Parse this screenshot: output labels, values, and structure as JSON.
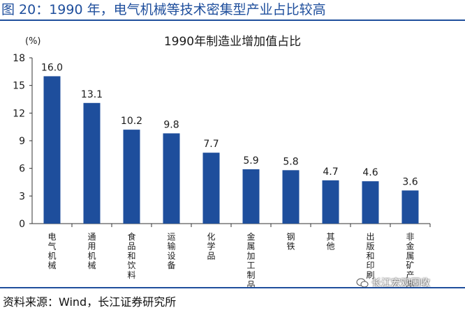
{
  "header": {
    "title": "图 20：1990 年，电气机械等技术密集型产业占比较高"
  },
  "footer": {
    "source": "资料来源：Wind，长江证券研究所"
  },
  "watermark": {
    "text": "长江宏观固收",
    "icon": "wechat-icon"
  },
  "colors": {
    "bar": "#1e4e9c",
    "rule": "#1e4e9c",
    "text": "#1a1a1a"
  },
  "chart_data": {
    "type": "bar",
    "title": "1990年制造业增加值占比",
    "unit": "(%)",
    "categories": [
      "电气机械",
      "通用机械",
      "食品和饮料",
      "运输设备",
      "化学品",
      "金属加工制品",
      "钢铁",
      "其他",
      "出版和印刷",
      "非金属矿产品"
    ],
    "values": [
      16.0,
      13.1,
      10.2,
      9.8,
      7.7,
      5.9,
      5.8,
      4.7,
      4.6,
      3.6
    ],
    "value_labels": [
      "16.0",
      "13.1",
      "10.2",
      "9.8",
      "7.7",
      "5.9",
      "5.8",
      "4.7",
      "4.6",
      "3.6"
    ],
    "ylim": [
      0,
      18
    ],
    "yticks": [
      0,
      3,
      6,
      9,
      12,
      15,
      18
    ],
    "grid": false,
    "legend": "none"
  }
}
